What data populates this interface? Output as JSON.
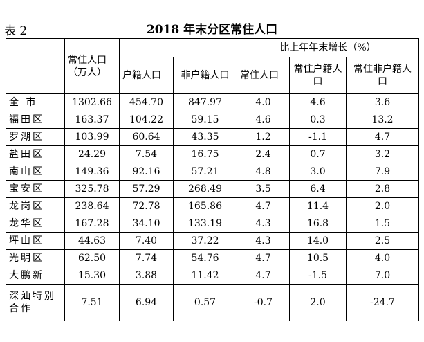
{
  "header": {
    "label": "表 2",
    "title": "2018 年末分区常住人口"
  },
  "table": {
    "columns": [
      "常住人口（万人）",
      "户籍人口",
      "非户籍人口",
      "常住人口",
      "常住户籍人口",
      "常住非户籍人口"
    ],
    "group": "比上年年末增长（%）",
    "rows": [
      [
        "全 市",
        "1302.66",
        "454.70",
        "847.97",
        "4.0",
        "4.6",
        "3.6"
      ],
      [
        "福田区",
        "163.37",
        "104.22",
        "59.15",
        "4.6",
        "0.3",
        "13.2"
      ],
      [
        "罗湖区",
        "103.99",
        "60.64",
        "43.35",
        "1.2",
        "-1.1",
        "4.7"
      ],
      [
        "盐田区",
        "24.29",
        "7.54",
        "16.75",
        "2.4",
        "0.7",
        "3.2"
      ],
      [
        "南山区",
        "149.36",
        "92.16",
        "57.21",
        "4.8",
        "3.0",
        "7.9"
      ],
      [
        "宝安区",
        "325.78",
        "57.29",
        "268.49",
        "3.5",
        "6.4",
        "2.8"
      ],
      [
        "龙岗区",
        "238.64",
        "72.78",
        "165.86",
        "4.7",
        "11.4",
        "2.0"
      ],
      [
        "龙华区",
        "167.28",
        "34.10",
        "133.19",
        "4.3",
        "16.8",
        "1.5"
      ],
      [
        "坪山区",
        "44.63",
        "7.40",
        "37.22",
        "4.3",
        "14.0",
        "2.5"
      ],
      [
        "光明区",
        "62.50",
        "7.74",
        "54.76",
        "4.7",
        "10.5",
        "4.0"
      ],
      [
        "大鹏新",
        "15.30",
        "3.88",
        "11.42",
        "4.7",
        "-1.5",
        "7.0"
      ],
      [
        "深汕特别合作",
        "7.51",
        "6.94",
        "0.57",
        "-0.7",
        "2.0",
        "-24.7"
      ]
    ]
  }
}
